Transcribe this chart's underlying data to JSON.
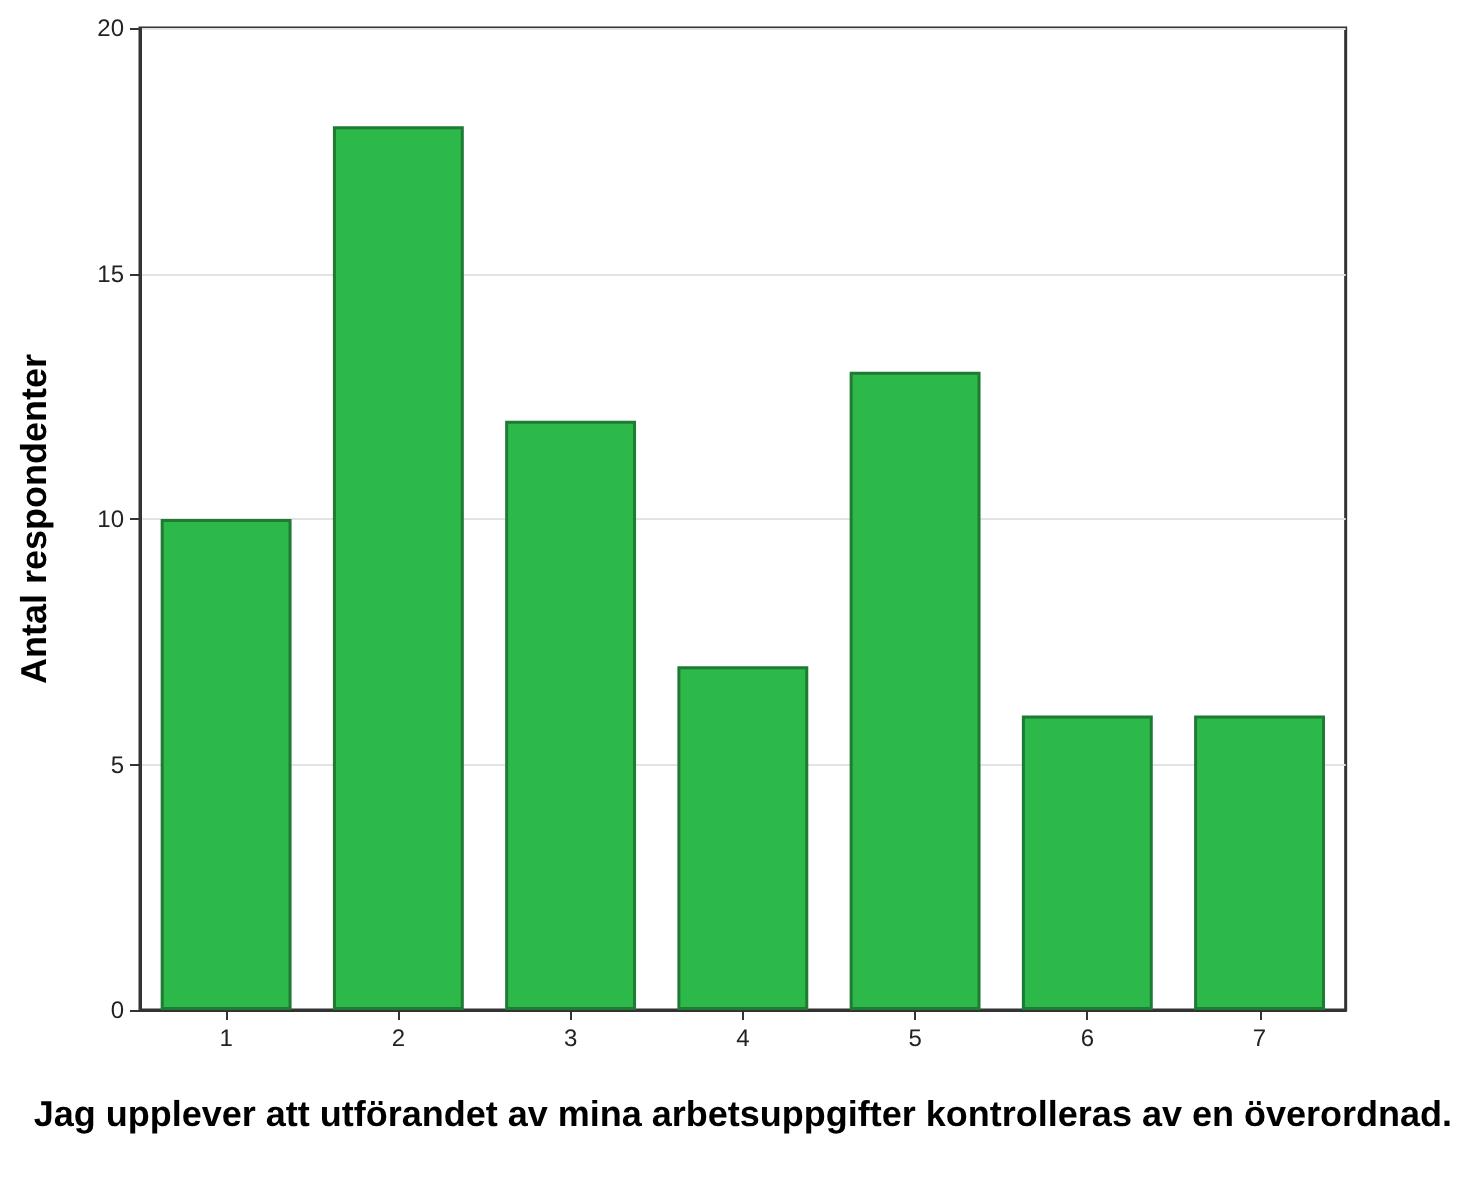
{
  "chart_data": {
    "type": "bar",
    "xlabel": "Jag upplever att utförandet av mina arbetsuppgifter kontrolleras av en överordnad.",
    "ylabel": "Antal respondenter",
    "categories": [
      "1",
      "2",
      "3",
      "4",
      "5",
      "6",
      "7"
    ],
    "values": [
      10,
      18,
      12,
      7,
      13,
      6,
      6
    ],
    "color": "#2db84a",
    "ylim": [
      0,
      20
    ],
    "yticks": [
      0,
      5,
      10,
      15,
      20
    ],
    "grid": "y"
  }
}
